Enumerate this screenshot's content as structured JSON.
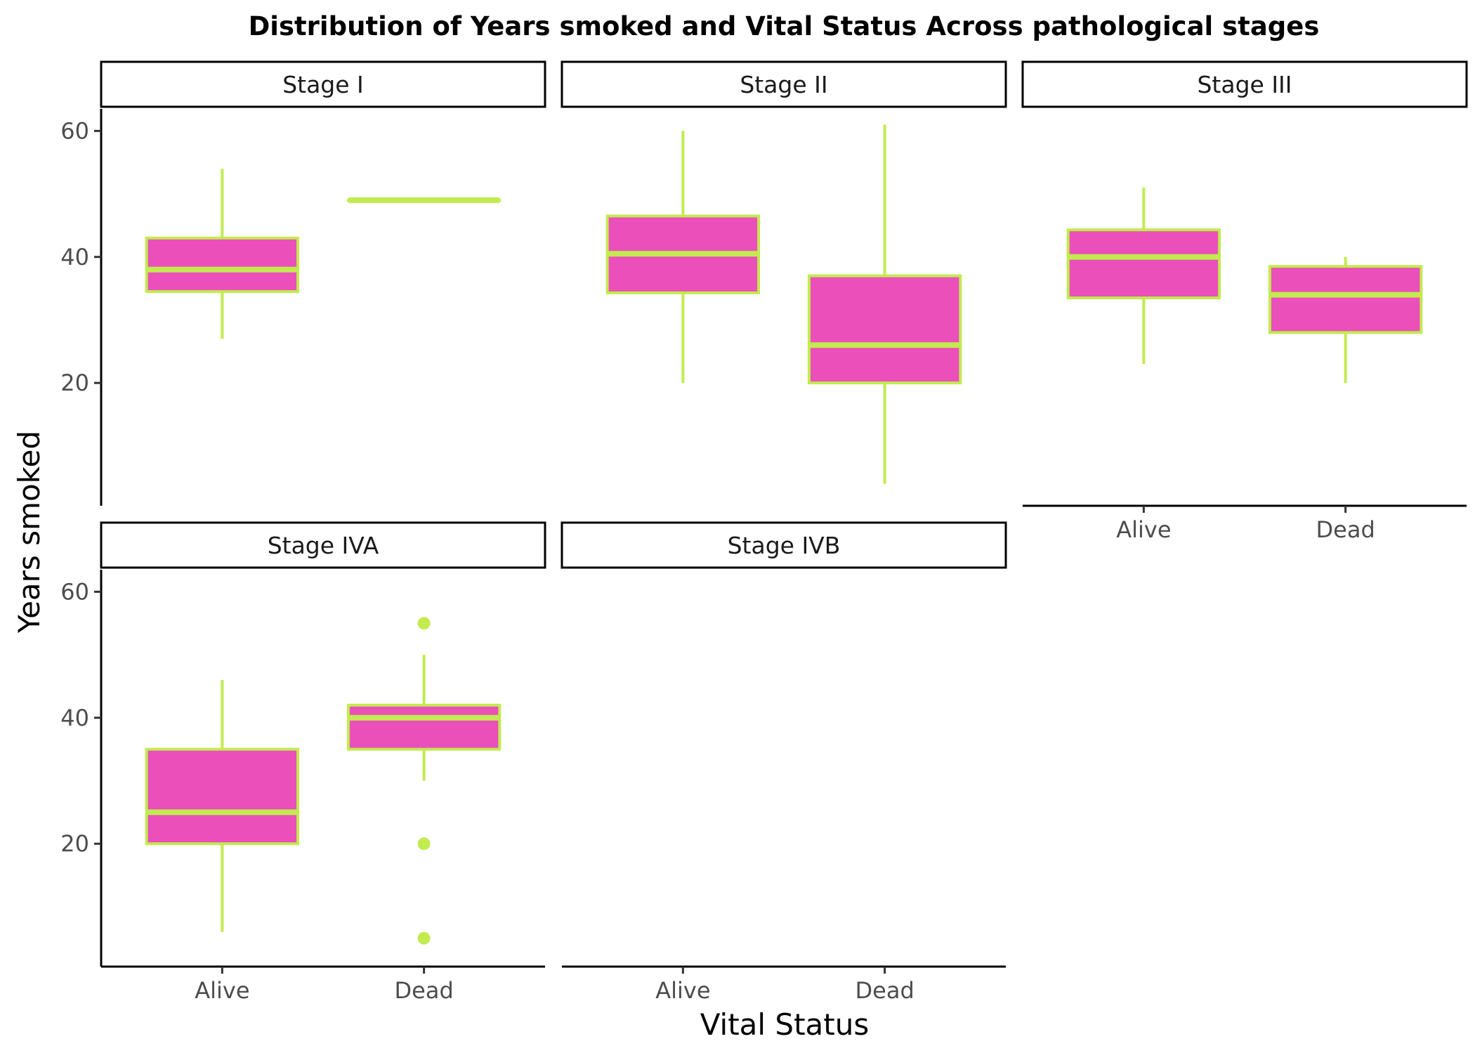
{
  "chart_data": {
    "type": "box",
    "title": "Distribution of Years smoked and Vital Status Across pathological stages",
    "xlabel": "Vital Status",
    "ylabel": "Years smoked",
    "categories": [
      "Alive",
      "Dead"
    ],
    "y_ticks": [
      20,
      40,
      60
    ],
    "ylim": [
      0.5,
      63.5
    ],
    "grid": false,
    "colors": {
      "box_fill": "#EB4FBA",
      "box_line": "#C2EB4F",
      "axis": "#000000"
    },
    "facets": [
      {
        "label": "Stage I",
        "boxes": [
          {
            "category": "Alive",
            "min": 27,
            "q1": 34.5,
            "median": 38,
            "q3": 43,
            "max": 54,
            "outliers": []
          },
          {
            "category": "Dead",
            "min": 49,
            "q1": 49,
            "median": 49,
            "q3": 49,
            "max": 49,
            "outliers": []
          }
        ]
      },
      {
        "label": "Stage II",
        "boxes": [
          {
            "category": "Alive",
            "min": 20,
            "q1": 34.3,
            "median": 40.5,
            "q3": 46.5,
            "max": 60,
            "outliers": []
          },
          {
            "category": "Dead",
            "min": 4,
            "q1": 20,
            "median": 26,
            "q3": 37,
            "max": 61,
            "outliers": []
          }
        ]
      },
      {
        "label": "Stage III",
        "boxes": [
          {
            "category": "Alive",
            "min": 23,
            "q1": 33.5,
            "median": 40,
            "q3": 44.3,
            "max": 51,
            "outliers": []
          },
          {
            "category": "Dead",
            "min": 20,
            "q1": 28,
            "median": 34,
            "q3": 38.5,
            "max": 40,
            "outliers": []
          }
        ]
      },
      {
        "label": "Stage IVA",
        "boxes": [
          {
            "category": "Alive",
            "min": 6,
            "q1": 20,
            "median": 25,
            "q3": 35,
            "max": 46,
            "outliers": []
          },
          {
            "category": "Dead",
            "min": 30,
            "q1": 35,
            "median": 40,
            "q3": 42,
            "max": 50,
            "outliers": [
              55,
              20,
              5
            ]
          }
        ]
      },
      {
        "label": "Stage IVB",
        "boxes": []
      }
    ]
  }
}
